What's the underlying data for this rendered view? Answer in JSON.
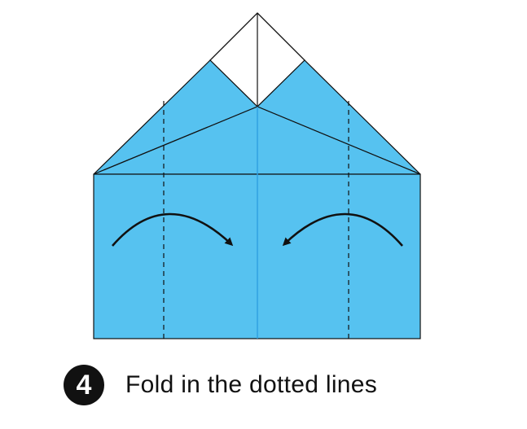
{
  "step": {
    "number": "4",
    "instruction": "Fold in the dotted lines"
  },
  "colors": {
    "paper_blue": "#56c2f0",
    "paper_white": "#ffffff",
    "outline": "#111111",
    "center_crease": "#2e9fe0"
  },
  "icons": {
    "left_arrow": "curved-arrow-right-icon",
    "right_arrow": "curved-arrow-left-icon"
  }
}
